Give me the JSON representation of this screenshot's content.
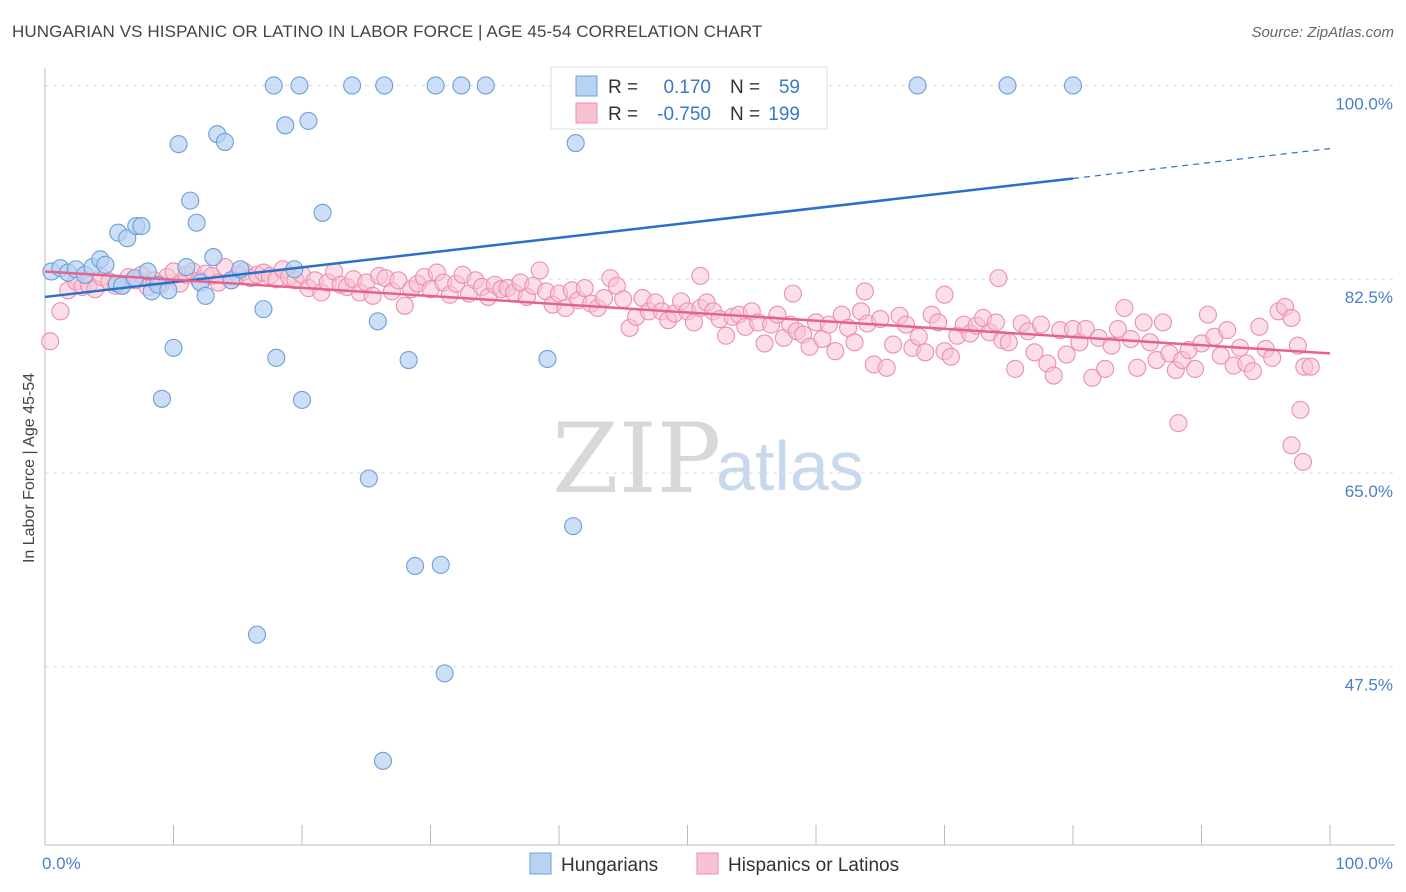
{
  "header": {
    "title": "HUNGARIAN VS HISPANIC OR LATINO IN LABOR FORCE | AGE 45-54 CORRELATION CHART",
    "source": "Source: ZipAtlas.com"
  },
  "watermark": {
    "zip": "ZIP",
    "atlas": "atlas"
  },
  "legend": {
    "rows": [
      {
        "r_label": "R =",
        "r_value": "0.170",
        "n_label": "N =",
        "n_value": "59"
      },
      {
        "r_label": "R =",
        "r_value": "-0.750",
        "n_label": "N =",
        "n_value": "199"
      }
    ]
  },
  "bottom_legend": {
    "series1": "Hungarians",
    "series2": "Hispanics or Latinos"
  },
  "colors": {
    "blue_fill": "#b7d2f2",
    "blue_stroke": "#6d9fd8",
    "blue_line": "#2a6fc9",
    "pink_fill": "#f7c3d3",
    "pink_stroke": "#ec8fae",
    "pink_line": "#e5628e",
    "tick_blue": "#4a7fc9",
    "grid": "#dddddd"
  },
  "chart_data": {
    "type": "scatter",
    "title": "HUNGARIAN VS HISPANIC OR LATINO IN LABOR FORCE | AGE 45-54 CORRELATION CHART",
    "xlabel": "",
    "ylabel": "In Labor Force | Age 45-54",
    "xlim": [
      0,
      100
    ],
    "ylim": [
      31.4,
      102.3
    ],
    "x_tick_labels": [
      "0.0%",
      "100.0%"
    ],
    "y_ticks": [
      100,
      82.5,
      65,
      47.5
    ],
    "y_tick_labels": [
      "100.0%",
      "82.5%",
      "65.0%",
      "47.5%"
    ],
    "grid": true,
    "legend_position": "top-center",
    "series": [
      {
        "name": "Hungarians",
        "R": 0.17,
        "N": 59,
        "trend": {
          "x0": 0,
          "y0": 80.9,
          "x1": 80,
          "y1": 91.6,
          "dash_to_x": 100,
          "dash_to_y": 94.3
        },
        "points": [
          [
            0.5,
            83.2
          ],
          [
            1.2,
            83.5
          ],
          [
            1.8,
            83.1
          ],
          [
            2.4,
            83.4
          ],
          [
            3.1,
            82.9
          ],
          [
            3.7,
            83.6
          ],
          [
            4.3,
            84.3
          ],
          [
            4.7,
            83.8
          ],
          [
            5.7,
            86.7
          ],
          [
            5.6,
            82.1
          ],
          [
            6.0,
            81.9
          ],
          [
            6.4,
            86.2
          ],
          [
            7.0,
            82.6
          ],
          [
            7.1,
            87.3
          ],
          [
            7.5,
            87.3
          ],
          [
            8.0,
            83.2
          ],
          [
            8.3,
            81.4
          ],
          [
            8.8,
            82.0
          ],
          [
            9.1,
            71.7
          ],
          [
            9.6,
            81.5
          ],
          [
            10.0,
            76.3
          ],
          [
            10.4,
            94.7
          ],
          [
            11.0,
            83.6
          ],
          [
            11.3,
            89.6
          ],
          [
            11.8,
            87.6
          ],
          [
            12.1,
            82.2
          ],
          [
            12.5,
            81.0
          ],
          [
            13.1,
            84.5
          ],
          [
            13.4,
            95.6
          ],
          [
            14.0,
            94.9
          ],
          [
            14.5,
            82.4
          ],
          [
            15.2,
            83.4
          ],
          [
            16.5,
            50.4
          ],
          [
            17.0,
            79.8
          ],
          [
            18.0,
            75.4
          ],
          [
            18.7,
            96.4
          ],
          [
            19.4,
            83.4
          ],
          [
            20.0,
            71.6
          ],
          [
            20.5,
            96.8
          ],
          [
            21.6,
            88.5
          ],
          [
            25.2,
            64.5
          ],
          [
            25.9,
            78.7
          ],
          [
            26.3,
            39.0
          ],
          [
            28.3,
            75.2
          ],
          [
            28.8,
            56.6
          ],
          [
            31.1,
            46.9
          ],
          [
            30.8,
            56.7
          ],
          [
            39.1,
            75.3
          ],
          [
            41.1,
            60.2
          ],
          [
            41.3,
            94.8
          ],
          [
            17.8,
            100
          ],
          [
            19.8,
            100
          ],
          [
            23.9,
            100
          ],
          [
            26.4,
            100
          ],
          [
            30.4,
            100
          ],
          [
            32.4,
            100
          ],
          [
            34.3,
            100
          ],
          [
            67.9,
            100
          ],
          [
            74.9,
            100
          ],
          [
            80.0,
            100
          ]
        ]
      },
      {
        "name": "Hispanics or Latinos",
        "R": -0.75,
        "N": 199,
        "trend": {
          "x0": 0,
          "y0": 83.2,
          "x1": 100,
          "y1": 75.8
        },
        "points": [
          [
            0.4,
            76.9
          ],
          [
            1.2,
            79.6
          ],
          [
            1.8,
            81.5
          ],
          [
            2.4,
            82.3
          ],
          [
            2.9,
            81.8
          ],
          [
            3.4,
            82.0
          ],
          [
            3.9,
            81.6
          ],
          [
            4.4,
            82.7
          ],
          [
            5.0,
            82.3
          ],
          [
            5.5,
            81.9
          ],
          [
            6.0,
            81.9
          ],
          [
            6.5,
            82.7
          ],
          [
            7.0,
            82.4
          ],
          [
            7.5,
            82.9
          ],
          [
            8.0,
            81.8
          ],
          [
            8.5,
            82.4
          ],
          [
            9.0,
            82.0
          ],
          [
            9.5,
            82.7
          ],
          [
            10.0,
            83.2
          ],
          [
            10.5,
            82.1
          ],
          [
            11.0,
            82.9
          ],
          [
            11.5,
            83.2
          ],
          [
            12.0,
            82.4
          ],
          [
            12.5,
            83.0
          ],
          [
            13.0,
            82.8
          ],
          [
            13.5,
            82.2
          ],
          [
            14.0,
            83.6
          ],
          [
            14.5,
            82.4
          ],
          [
            15.0,
            82.9
          ],
          [
            15.5,
            83.2
          ],
          [
            16.0,
            82.6
          ],
          [
            16.5,
            82.9
          ],
          [
            17.0,
            83.1
          ],
          [
            17.5,
            82.8
          ],
          [
            18.0,
            82.5
          ],
          [
            18.5,
            83.4
          ],
          [
            19.0,
            82.7
          ],
          [
            19.5,
            82.4
          ],
          [
            20.0,
            82.9
          ],
          [
            20.5,
            81.7
          ],
          [
            21.0,
            82.4
          ],
          [
            21.5,
            81.3
          ],
          [
            22.0,
            82.2
          ],
          [
            22.5,
            83.2
          ],
          [
            23.0,
            82.0
          ],
          [
            23.5,
            81.8
          ],
          [
            24.0,
            82.5
          ],
          [
            24.5,
            81.3
          ],
          [
            25.0,
            82.2
          ],
          [
            25.5,
            81.0
          ],
          [
            26.0,
            82.8
          ],
          [
            26.5,
            82.6
          ],
          [
            27.0,
            81.4
          ],
          [
            27.5,
            82.4
          ],
          [
            28.0,
            80.1
          ],
          [
            28.5,
            81.6
          ],
          [
            29.0,
            82.1
          ],
          [
            29.5,
            82.7
          ],
          [
            30.0,
            81.6
          ],
          [
            30.5,
            83.1
          ],
          [
            31.0,
            82.2
          ],
          [
            31.5,
            81.1
          ],
          [
            32.0,
            82.1
          ],
          [
            32.5,
            82.9
          ],
          [
            33.0,
            81.2
          ],
          [
            33.5,
            82.4
          ],
          [
            34.0,
            81.8
          ],
          [
            34.5,
            80.9
          ],
          [
            35.0,
            82.0
          ],
          [
            35.5,
            81.6
          ],
          [
            36.0,
            81.7
          ],
          [
            36.5,
            81.3
          ],
          [
            37.0,
            82.2
          ],
          [
            37.5,
            80.9
          ],
          [
            38.0,
            81.9
          ],
          [
            38.5,
            83.3
          ],
          [
            39.0,
            81.4
          ],
          [
            39.5,
            80.2
          ],
          [
            40.0,
            81.2
          ],
          [
            40.5,
            79.9
          ],
          [
            41.0,
            81.5
          ],
          [
            41.5,
            80.6
          ],
          [
            42.0,
            81.7
          ],
          [
            42.5,
            80.3
          ],
          [
            43.0,
            79.9
          ],
          [
            43.5,
            80.8
          ],
          [
            44.0,
            82.6
          ],
          [
            44.5,
            81.9
          ],
          [
            45.0,
            80.7
          ],
          [
            45.5,
            78.1
          ],
          [
            46.0,
            79.1
          ],
          [
            46.5,
            80.8
          ],
          [
            47.0,
            79.6
          ],
          [
            47.5,
            80.4
          ],
          [
            48.0,
            79.6
          ],
          [
            48.5,
            78.8
          ],
          [
            49.0,
            79.4
          ],
          [
            49.5,
            80.5
          ],
          [
            50.0,
            79.6
          ],
          [
            50.5,
            78.6
          ],
          [
            51.0,
            79.9
          ],
          [
            51.5,
            80.4
          ],
          [
            52.0,
            79.6
          ],
          [
            52.5,
            78.9
          ],
          [
            53.0,
            77.4
          ],
          [
            53.5,
            79.1
          ],
          [
            54.0,
            79.3
          ],
          [
            54.5,
            78.2
          ],
          [
            55.0,
            79.6
          ],
          [
            55.5,
            78.6
          ],
          [
            56.0,
            76.7
          ],
          [
            56.5,
            78.4
          ],
          [
            57.0,
            79.3
          ],
          [
            57.5,
            77.2
          ],
          [
            58.0,
            78.4
          ],
          [
            58.5,
            77.8
          ],
          [
            59.0,
            77.5
          ],
          [
            59.5,
            76.4
          ],
          [
            60.0,
            78.6
          ],
          [
            60.5,
            77.1
          ],
          [
            61.0,
            78.4
          ],
          [
            61.5,
            76.0
          ],
          [
            62.0,
            79.3
          ],
          [
            62.5,
            78.1
          ],
          [
            63.0,
            76.8
          ],
          [
            63.5,
            79.6
          ],
          [
            64.0,
            78.5
          ],
          [
            64.5,
            74.8
          ],
          [
            65.0,
            78.9
          ],
          [
            65.5,
            74.5
          ],
          [
            66.0,
            76.6
          ],
          [
            66.5,
            79.2
          ],
          [
            67.0,
            78.4
          ],
          [
            67.5,
            76.3
          ],
          [
            68.0,
            77.3
          ],
          [
            68.5,
            75.9
          ],
          [
            69.0,
            79.3
          ],
          [
            69.5,
            78.6
          ],
          [
            70.0,
            76.0
          ],
          [
            70.5,
            75.5
          ],
          [
            71.0,
            77.4
          ],
          [
            71.5,
            78.4
          ],
          [
            72.0,
            77.6
          ],
          [
            72.5,
            78.3
          ],
          [
            73.0,
            79.0
          ],
          [
            73.5,
            77.7
          ],
          [
            74.0,
            78.6
          ],
          [
            74.5,
            77.0
          ],
          [
            75.0,
            76.8
          ],
          [
            75.5,
            74.4
          ],
          [
            76.0,
            78.5
          ],
          [
            76.5,
            77.8
          ],
          [
            77.0,
            75.9
          ],
          [
            77.5,
            78.4
          ],
          [
            78.0,
            74.9
          ],
          [
            78.5,
            73.8
          ],
          [
            79.0,
            77.9
          ],
          [
            79.5,
            75.7
          ],
          [
            80.0,
            78.0
          ],
          [
            80.5,
            76.8
          ],
          [
            81.0,
            78.0
          ],
          [
            81.5,
            73.6
          ],
          [
            82.0,
            77.2
          ],
          [
            82.5,
            74.4
          ],
          [
            83.0,
            76.5
          ],
          [
            83.5,
            78.0
          ],
          [
            84.0,
            79.9
          ],
          [
            84.5,
            77.1
          ],
          [
            85.0,
            74.5
          ],
          [
            85.5,
            78.6
          ],
          [
            86.0,
            76.8
          ],
          [
            86.5,
            75.2
          ],
          [
            87.0,
            78.6
          ],
          [
            87.5,
            75.8
          ],
          [
            88.0,
            74.3
          ],
          [
            88.5,
            75.2
          ],
          [
            89.0,
            76.1
          ],
          [
            89.5,
            74.4
          ],
          [
            90.0,
            76.7
          ],
          [
            90.5,
            79.3
          ],
          [
            91.0,
            77.3
          ],
          [
            91.5,
            75.6
          ],
          [
            92.0,
            77.9
          ],
          [
            92.5,
            74.7
          ],
          [
            93.0,
            76.3
          ],
          [
            93.5,
            74.9
          ],
          [
            94.0,
            74.2
          ],
          [
            94.5,
            78.2
          ],
          [
            95.0,
            76.2
          ],
          [
            95.5,
            75.4
          ],
          [
            96.0,
            79.6
          ],
          [
            96.5,
            80.0
          ],
          [
            97.0,
            79.0
          ],
          [
            97.5,
            76.5
          ],
          [
            98.0,
            74.6
          ],
          [
            98.5,
            74.6
          ],
          [
            97.0,
            67.5
          ],
          [
            97.9,
            66.0
          ],
          [
            88.2,
            69.5
          ],
          [
            74.2,
            82.6
          ],
          [
            97.7,
            70.7
          ],
          [
            51.0,
            82.8
          ],
          [
            58.2,
            81.2
          ],
          [
            63.8,
            81.4
          ],
          [
            70.0,
            81.1
          ]
        ]
      }
    ]
  }
}
